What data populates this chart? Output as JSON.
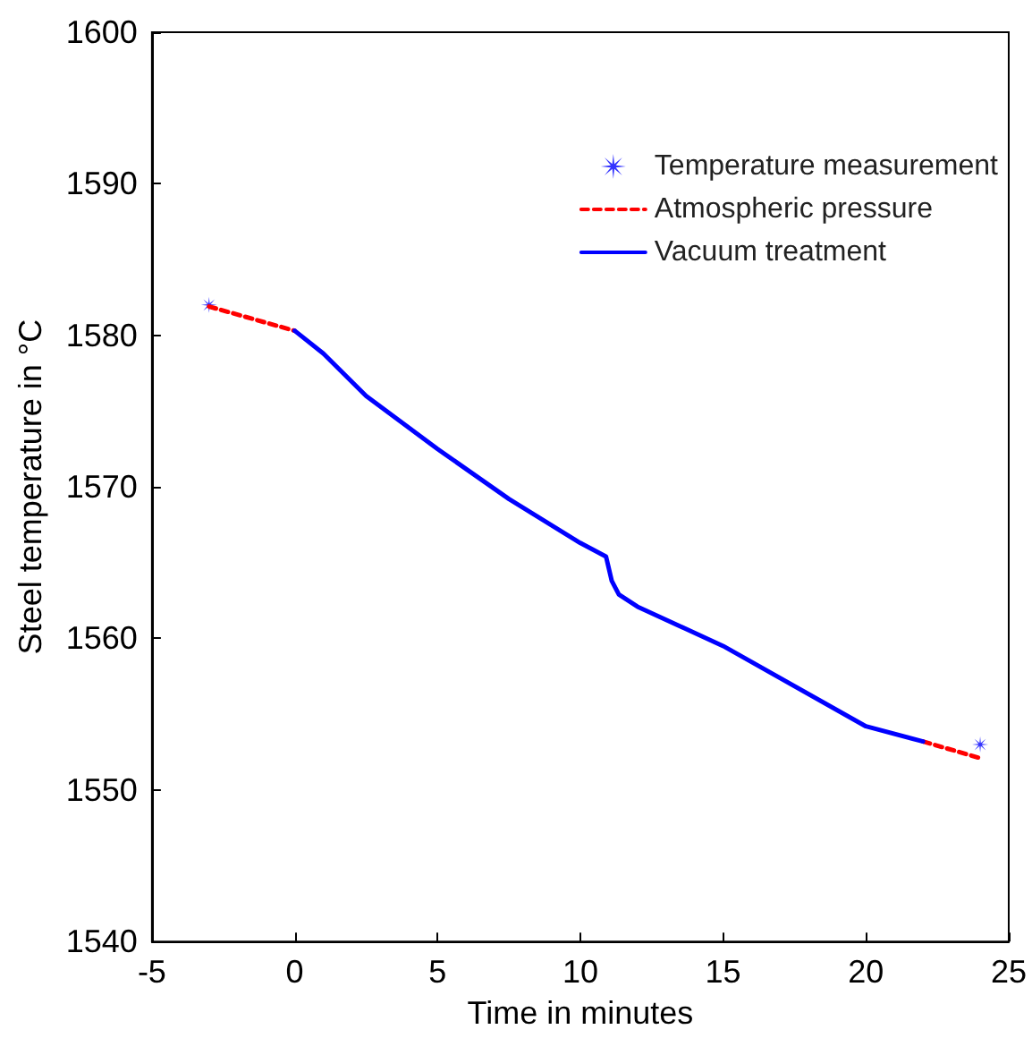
{
  "chart_data": {
    "type": "line",
    "xlabel": "Time in minutes",
    "ylabel": "Steel temperature in °C",
    "xlim": [
      -5,
      25
    ],
    "xticks": [
      -5,
      0,
      5,
      10,
      15,
      20,
      25
    ],
    "ylim": [
      1540,
      1600
    ],
    "yticks": [
      1540,
      1550,
      1560,
      1570,
      1580,
      1590,
      1600
    ],
    "grid": false,
    "legend": "top right",
    "series": [
      {
        "name": "Temperature measurement",
        "type": "scatter",
        "marker": "star",
        "color": "#0000ff",
        "x": [
          -3,
          24
        ],
        "values": [
          1582,
          1553
        ]
      },
      {
        "name": "Atmospheric pressure",
        "type": "line",
        "line_style": "dashed",
        "marker": "none",
        "color": "#ff0000",
        "x": [
          -3,
          0,
          null,
          22,
          24
        ],
        "values": [
          1581.9,
          1580.3,
          null,
          1553.2,
          1552.1
        ]
      },
      {
        "name": "Vacuum treatment",
        "type": "line",
        "line_style": "solid",
        "marker": "none",
        "color": "#0000ff",
        "x": [
          0,
          1,
          2.5,
          5,
          7.5,
          10,
          10.9,
          11.1,
          11.35,
          12,
          15,
          20,
          22
        ],
        "values": [
          1580.3,
          1578.8,
          1576,
          1572.5,
          1569.2,
          1566.3,
          1565.4,
          1563.8,
          1562.9,
          1562.1,
          1559.5,
          1554.2,
          1553.2
        ]
      }
    ]
  }
}
